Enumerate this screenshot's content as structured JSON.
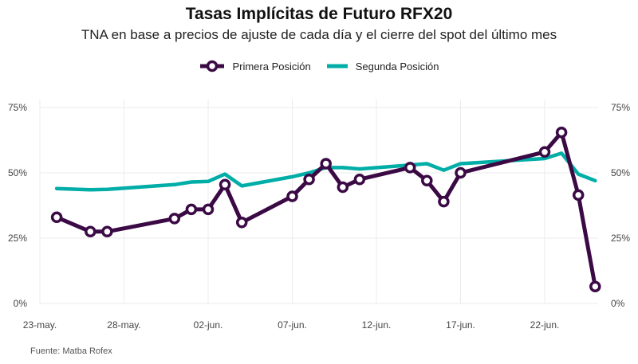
{
  "chart_data": {
    "type": "line",
    "title": "Tasas Implícitas de Futuro RFX20",
    "subtitle": "TNA en base a precios de ajuste de cada día y el cierre del spot del último mes",
    "source": "Fuente: Matba Rofex",
    "xlabel": "",
    "ylabel": "",
    "x_ticks": [
      "23-may.",
      "28-may.",
      "02-jun.",
      "07-jun.",
      "12-jun.",
      "17-jun.",
      "22-jun."
    ],
    "y_ticks": [
      "0%",
      "25%",
      "50%",
      "75%"
    ],
    "ylim": [
      0,
      75
    ],
    "grid": true,
    "legend_position": "top",
    "series": [
      {
        "name": "Primera Posición",
        "color": "#3b0a45",
        "marker": "hollow-circle",
        "points": [
          {
            "x": "2021-05-24",
            "y": 33
          },
          {
            "x": "2021-05-26",
            "y": 27.5
          },
          {
            "x": "2021-05-27",
            "y": 27.5
          },
          {
            "x": "2021-05-31",
            "y": 32.5
          },
          {
            "x": "2021-06-01",
            "y": 36
          },
          {
            "x": "2021-06-02",
            "y": 36
          },
          {
            "x": "2021-06-03",
            "y": 45.5
          },
          {
            "x": "2021-06-04",
            "y": 31
          },
          {
            "x": "2021-06-07",
            "y": 41
          },
          {
            "x": "2021-06-08",
            "y": 47.5
          },
          {
            "x": "2021-06-09",
            "y": 53.5
          },
          {
            "x": "2021-06-10",
            "y": 44.5
          },
          {
            "x": "2021-06-11",
            "y": 47.5
          },
          {
            "x": "2021-06-14",
            "y": 52
          },
          {
            "x": "2021-06-15",
            "y": 47
          },
          {
            "x": "2021-06-16",
            "y": 39
          },
          {
            "x": "2021-06-17",
            "y": 50
          },
          {
            "x": "2021-06-22",
            "y": 58
          },
          {
            "x": "2021-06-23",
            "y": 65.5
          },
          {
            "x": "2021-06-24",
            "y": 41.5
          },
          {
            "x": "2021-06-25",
            "y": 6.5
          }
        ]
      },
      {
        "name": "Segunda Posición",
        "color": "#00ada7",
        "marker": "none",
        "points": [
          {
            "x": "2021-05-24",
            "y": 44
          },
          {
            "x": "2021-05-26",
            "y": 43.5
          },
          {
            "x": "2021-05-27",
            "y": 43.7
          },
          {
            "x": "2021-05-31",
            "y": 45.5
          },
          {
            "x": "2021-06-01",
            "y": 46.5
          },
          {
            "x": "2021-06-02",
            "y": 46.7
          },
          {
            "x": "2021-06-03",
            "y": 49.5
          },
          {
            "x": "2021-06-04",
            "y": 45
          },
          {
            "x": "2021-06-07",
            "y": 48.5
          },
          {
            "x": "2021-06-08",
            "y": 50
          },
          {
            "x": "2021-06-09",
            "y": 52
          },
          {
            "x": "2021-06-10",
            "y": 52
          },
          {
            "x": "2021-06-11",
            "y": 51.5
          },
          {
            "x": "2021-06-14",
            "y": 53
          },
          {
            "x": "2021-06-15",
            "y": 53.5
          },
          {
            "x": "2021-06-16",
            "y": 51
          },
          {
            "x": "2021-06-17",
            "y": 53.5
          },
          {
            "x": "2021-06-22",
            "y": 55.5
          },
          {
            "x": "2021-06-23",
            "y": 57.5
          },
          {
            "x": "2021-06-24",
            "y": 49.5
          },
          {
            "x": "2021-06-25",
            "y": 47
          }
        ]
      }
    ]
  }
}
